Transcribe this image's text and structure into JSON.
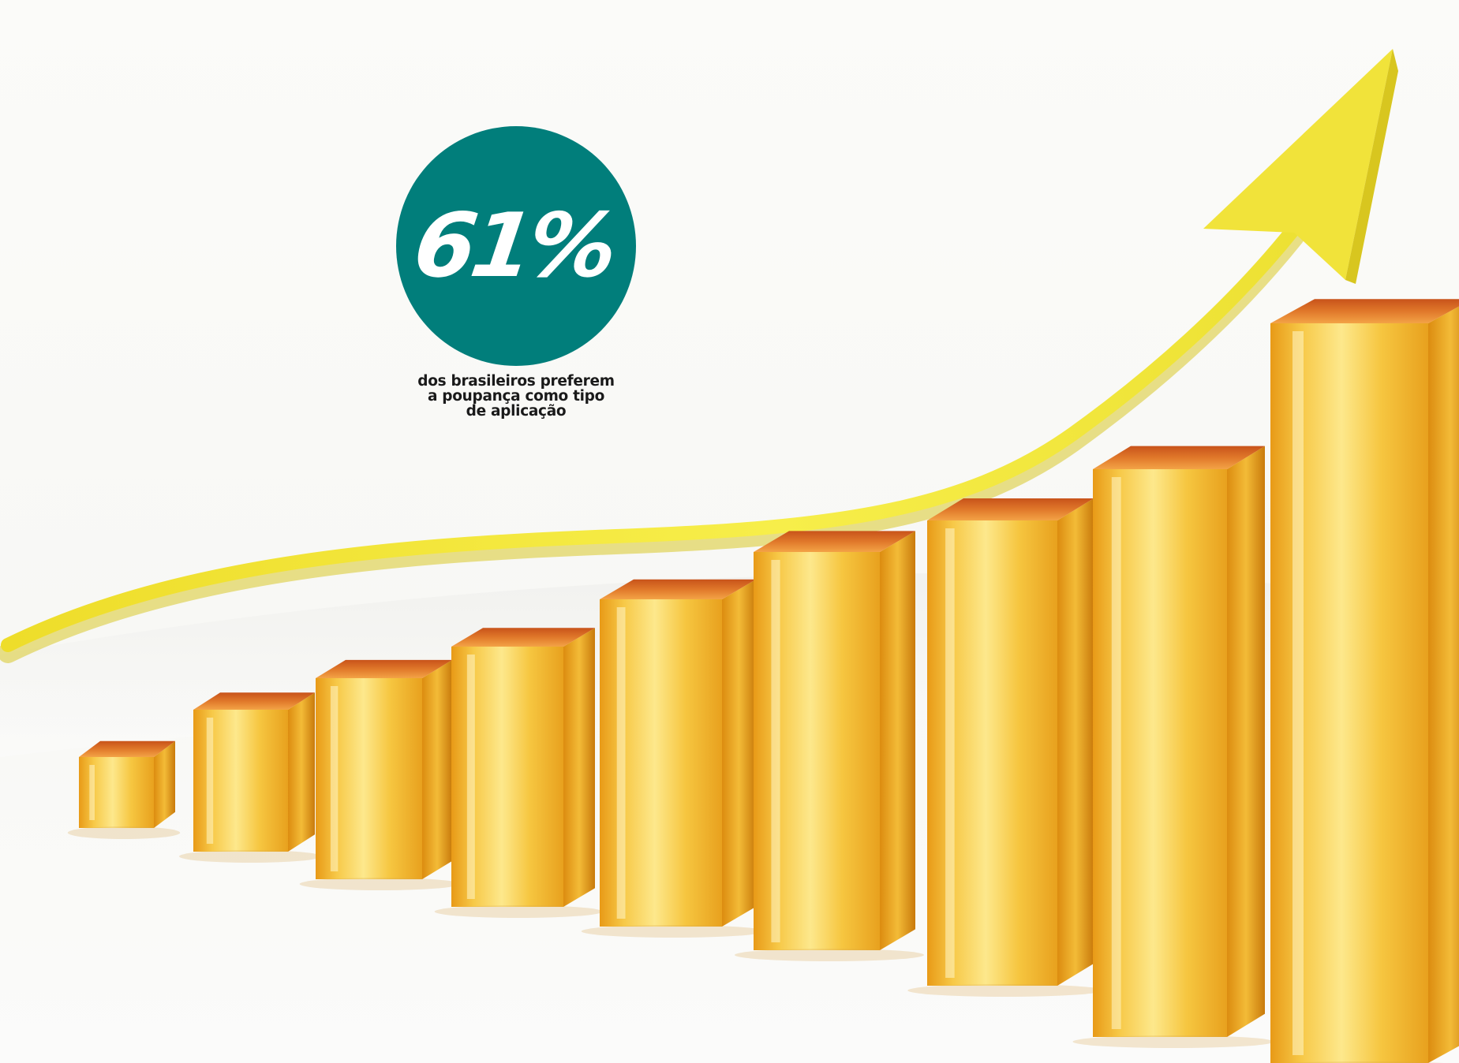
{
  "infographic": {
    "stat_value": "61%",
    "stat_caption_lines": [
      "dos brasileiros preferem",
      "a poupança como tipo",
      "de aplicação"
    ],
    "circle_color": "#017e7b"
  },
  "illustration": {
    "bars_count": 9,
    "bar_color": "#f2b52e",
    "arrow_color": "#f2e235"
  }
}
